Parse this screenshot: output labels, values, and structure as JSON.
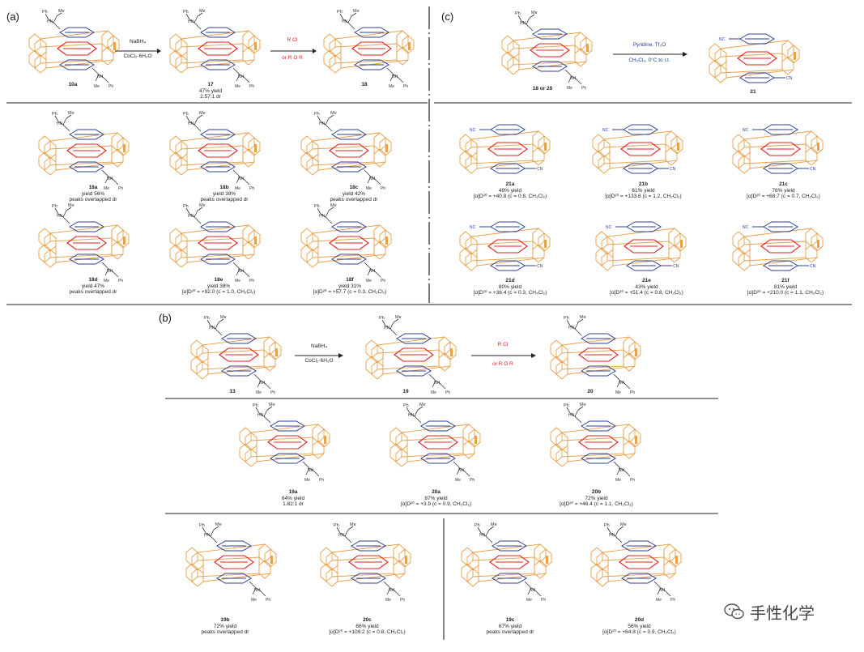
{
  "panels": {
    "a": {
      "label": "(a)",
      "scheme": [
        {
          "num": "10a",
          "lines": []
        },
        {
          "num": "17",
          "lines": [
            "47% yield",
            "2.57:1 dr"
          ]
        },
        {
          "num": "18",
          "lines": []
        }
      ],
      "arrow1": {
        "top": "NaBH₄",
        "bottom": "CoCl₂·6H₂O"
      },
      "arrow2": {
        "top": "R Cl",
        "bottom": "or R O R"
      },
      "row1": [
        {
          "num": "18a",
          "lines": [
            "yield 56%",
            "peaks overlapped dr"
          ]
        },
        {
          "num": "18b",
          "lines": [
            "yield 39%",
            "peaks overlapped dr"
          ]
        },
        {
          "num": "18c",
          "lines": [
            "yield 42%",
            "peaks overlapped dr"
          ]
        }
      ],
      "row2": [
        {
          "num": "18d",
          "lines": [
            "yield 47%",
            "peaks overlapped dr"
          ]
        },
        {
          "num": "18e",
          "lines": [
            "yield 38%",
            "[α]D²⁰ = +92.0 (c = 1.0, CH₂Cl₂)"
          ]
        },
        {
          "num": "18f",
          "lines": [
            "yield 31%",
            "[α]D²⁰ = +57.7 (c = 0.3, CH₂Cl₂)"
          ]
        }
      ]
    },
    "c": {
      "label": "(c)",
      "scheme": [
        {
          "num": "18 or 20",
          "lines": []
        },
        {
          "num": "21",
          "lines": []
        }
      ],
      "arrow": {
        "top": "Pyridine, Tf₂O",
        "bottom": "CH₂Cl₂, 0°C to r.t."
      },
      "row1": [
        {
          "num": "21a",
          "lines": [
            "49% yield",
            "[α]D²⁰ = +40.8 (c = 0.8, CH₂Cl₂)"
          ]
        },
        {
          "num": "21b",
          "lines": [
            "61% yield",
            "[α]D²⁰ = +133.8 (c = 1.2, CH₂Cl₂)"
          ]
        },
        {
          "num": "21c",
          "lines": [
            "76% yield",
            "[α]D²⁰ = +68.7 (c = 0.7, CH₂Cl₂)"
          ]
        }
      ],
      "row2": [
        {
          "num": "21d",
          "lines": [
            "80% yield",
            "[α]D²⁰ = +36.4 (c = 0.3, CH₂Cl₂)"
          ]
        },
        {
          "num": "21e",
          "lines": [
            "43% yield",
            "[α]D²⁰ = +51.4 (c = 0.8, CH₂Cl₂)"
          ]
        },
        {
          "num": "21f",
          "lines": [
            "81% yield",
            "[α]D²⁰ = +210.0 (c = 1.1, CH₂Cl₂)"
          ]
        }
      ]
    },
    "b": {
      "label": "(b)",
      "scheme": [
        {
          "num": "13",
          "lines": []
        },
        {
          "num": "19",
          "lines": []
        },
        {
          "num": "20",
          "lines": []
        }
      ],
      "arrow1": {
        "top": "NaBH₄",
        "bottom": "CoCl₂·6H₂O"
      },
      "arrow2": {
        "top": "R Cl",
        "bottom": "or R O R"
      },
      "row1": [
        {
          "num": "19a",
          "lines": [
            "64% yield",
            "1.82:1 dr"
          ]
        },
        {
          "num": "20a",
          "lines": [
            "87% yield",
            "[α]D²⁰ = +3.9 (c = 0.9, CH₂Cl₂)"
          ]
        },
        {
          "num": "20b",
          "lines": [
            "72% yield",
            "[α]D²⁰ = +46.4 (c = 1.1, CH₂Cl₂)"
          ]
        }
      ],
      "row2": [
        {
          "num": "19b",
          "lines": [
            "72% yield",
            "peaks overlapped dr"
          ]
        },
        {
          "num": "20c",
          "lines": [
            "66% yield",
            "[α]D²⁰ = +109.2 (c = 0.8, CH₂Cl₂)"
          ]
        },
        {
          "num": "19c",
          "lines": [
            "67% yield",
            "peaks overlapped dr"
          ]
        },
        {
          "num": "20d",
          "lines": [
            "56% yield",
            "[α]D²⁰ = +64.8 (c = 0.9, CH₂Cl₂)"
          ]
        }
      ]
    }
  },
  "watermark": {
    "text": "手性化学",
    "icon": "wechat-icon"
  },
  "colors": {
    "cyclophane": "#e8a04a",
    "highlight": "#e02020",
    "arene": "#2a3f9a",
    "text": "#222222"
  }
}
